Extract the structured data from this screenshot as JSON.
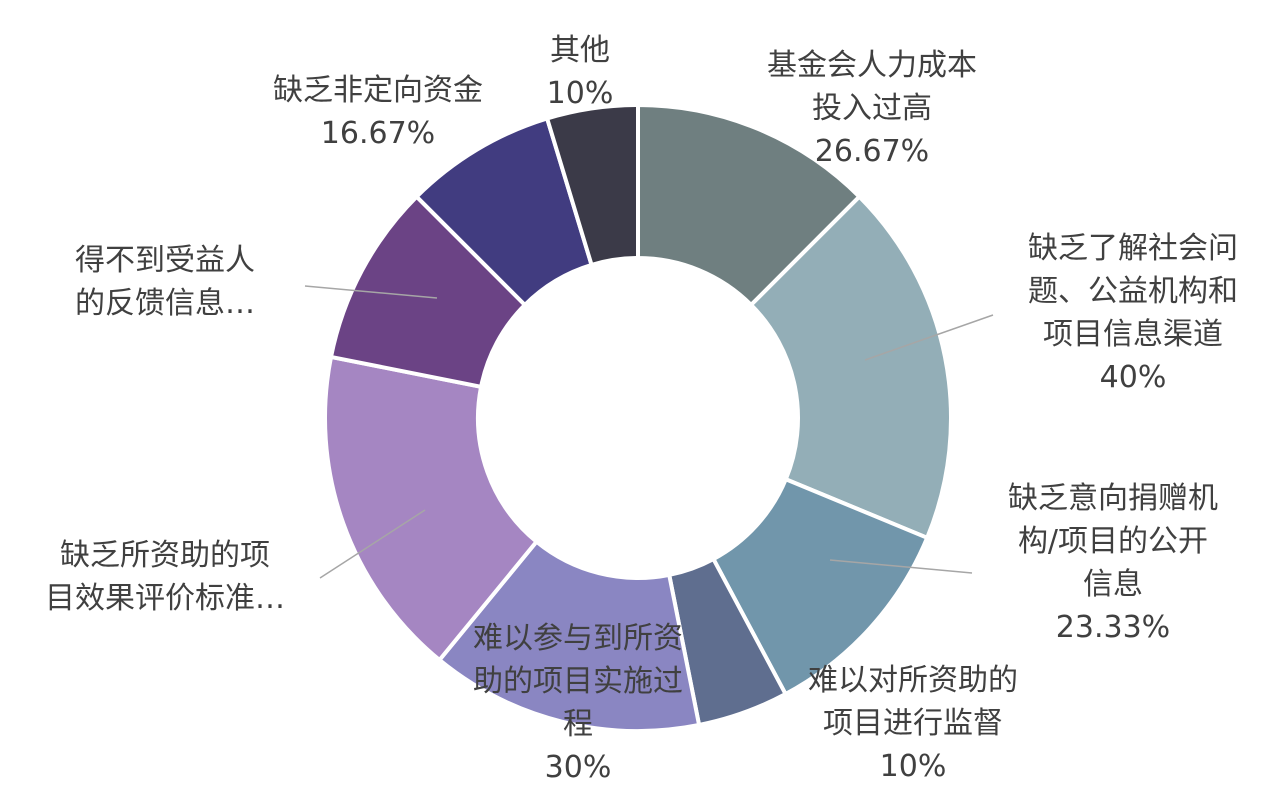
{
  "chart_data": {
    "type": "pie",
    "variant": "donut",
    "series": [
      {
        "label_lines": [
          "基金会人力成本",
          "投入过高"
        ],
        "value_label": "26.67%",
        "value": 26.67,
        "color": "#6f7f80"
      },
      {
        "label_lines": [
          "缺乏了解社会问",
          "题、公益机构和",
          "项目信息渠道"
        ],
        "value_label": "40%",
        "value": 40,
        "color": "#93aeb7"
      },
      {
        "label_lines": [
          "缺乏意向捐赠机",
          "构/项目的公开",
          "信息"
        ],
        "value_label": "23.33%",
        "value": 23.33,
        "color": "#7196ab"
      },
      {
        "label_lines": [
          "难以对所资助的",
          "项目进行监督"
        ],
        "value_label": "10%",
        "value": 10,
        "color": "#5f6e8f"
      },
      {
        "label_lines": [
          "难以参与到所资",
          "助的项目实施过",
          "程"
        ],
        "value_label": "30%",
        "value": 30,
        "color": "#8a86c2"
      },
      {
        "label_lines": [
          "缺乏所资助的项",
          "目效果评价标准…"
        ],
        "value_label": "",
        "value": 36.67,
        "color": "#a586c2"
      },
      {
        "label_lines": [
          "得不到受益人",
          "的反馈信息…"
        ],
        "value_label": "",
        "value": 20,
        "color": "#6b4385"
      },
      {
        "label_lines": [
          "缺乏非定向资金"
        ],
        "value_label": "16.67%",
        "value": 16.67,
        "color": "#413c80"
      },
      {
        "label_lines": [
          "其他"
        ],
        "value_label": "10%",
        "value": 10,
        "color": "#3b3a48"
      }
    ]
  }
}
